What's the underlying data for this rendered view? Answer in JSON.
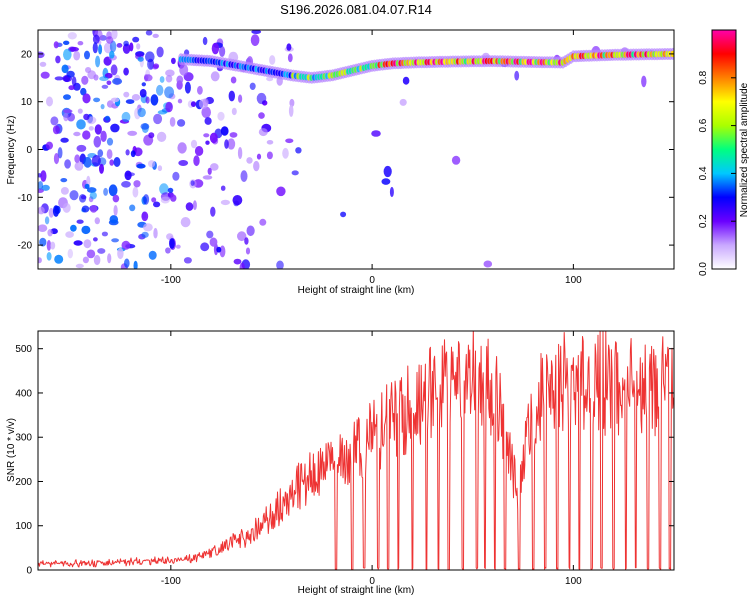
{
  "title": "S196.2026.081.04.07.R14",
  "colors": {
    "snr_line": "#ee3333",
    "axis": "#000000",
    "background": "#ffffff"
  },
  "chart_data": [
    {
      "type": "heatmap",
      "name": "spectrogram",
      "xlabel": "Height of straight line (km)",
      "ylabel": "Frequency (Hz)",
      "xlim": [
        -166,
        150
      ],
      "ylim": [
        -25,
        25
      ],
      "xticks": [
        -100,
        0,
        100
      ],
      "yticks": [
        -20,
        -10,
        0,
        10,
        20
      ],
      "ridge": {
        "x": [
          -166,
          -100,
          -80,
          -60,
          -40,
          -30,
          -20,
          -10,
          0,
          10,
          20,
          40,
          60,
          80,
          95,
          100,
          120,
          150
        ],
        "y": [
          20,
          19,
          18.5,
          17,
          15.5,
          15,
          15.5,
          16.5,
          17.5,
          18,
          18.2,
          18.4,
          18.5,
          18.3,
          18.2,
          19.5,
          19.8,
          20
        ]
      },
      "colorbar": {
        "label": "Normalized spectral amplitude",
        "range": [
          0,
          1
        ],
        "ticks": [
          0.0,
          0.2,
          0.4,
          0.6,
          0.8
        ],
        "tick_labels": [
          "0.0",
          "0.2",
          "0.4",
          "0.6",
          "0.8"
        ],
        "colors": [
          "#ffffff",
          "#c9a8ff",
          "#6a00ff",
          "#0000ff",
          "#00c8ff",
          "#00ff80",
          "#aaff00",
          "#ffff00",
          "#ff8000",
          "#ff0000",
          "#ff00aa"
        ]
      }
    },
    {
      "type": "line",
      "name": "snr",
      "xlabel": "Height of straight line (km)",
      "ylabel": "SNR (10 * v/v)",
      "xlim": [
        -166,
        150
      ],
      "ylim": [
        0,
        540
      ],
      "xticks": [
        -100,
        0,
        100
      ],
      "yticks": [
        0,
        100,
        200,
        300,
        400,
        500
      ],
      "series": [
        {
          "name": "SNR envelope",
          "x": [
            -166,
            -140,
            -120,
            -100,
            -90,
            -80,
            -70,
            -60,
            -50,
            -40,
            -30,
            -20,
            -10,
            0,
            10,
            20,
            30,
            40,
            50,
            60,
            65,
            70,
            72,
            75,
            80,
            90,
            100,
            110,
            120,
            130,
            140,
            150
          ],
          "y": [
            15,
            15,
            18,
            22,
            25,
            40,
            60,
            80,
            120,
            180,
            210,
            240,
            260,
            300,
            340,
            370,
            400,
            420,
            430,
            410,
            330,
            220,
            180,
            240,
            370,
            420,
            420,
            430,
            420,
            420,
            410,
            420
          ]
        }
      ],
      "dropouts_km": [
        -18,
        -10,
        -4,
        3,
        8,
        13,
        20,
        27,
        33,
        38,
        45,
        52,
        56,
        61,
        66,
        73,
        80,
        86,
        92,
        98,
        103,
        109,
        114,
        120,
        126,
        131,
        137,
        143,
        148
      ]
    }
  ]
}
